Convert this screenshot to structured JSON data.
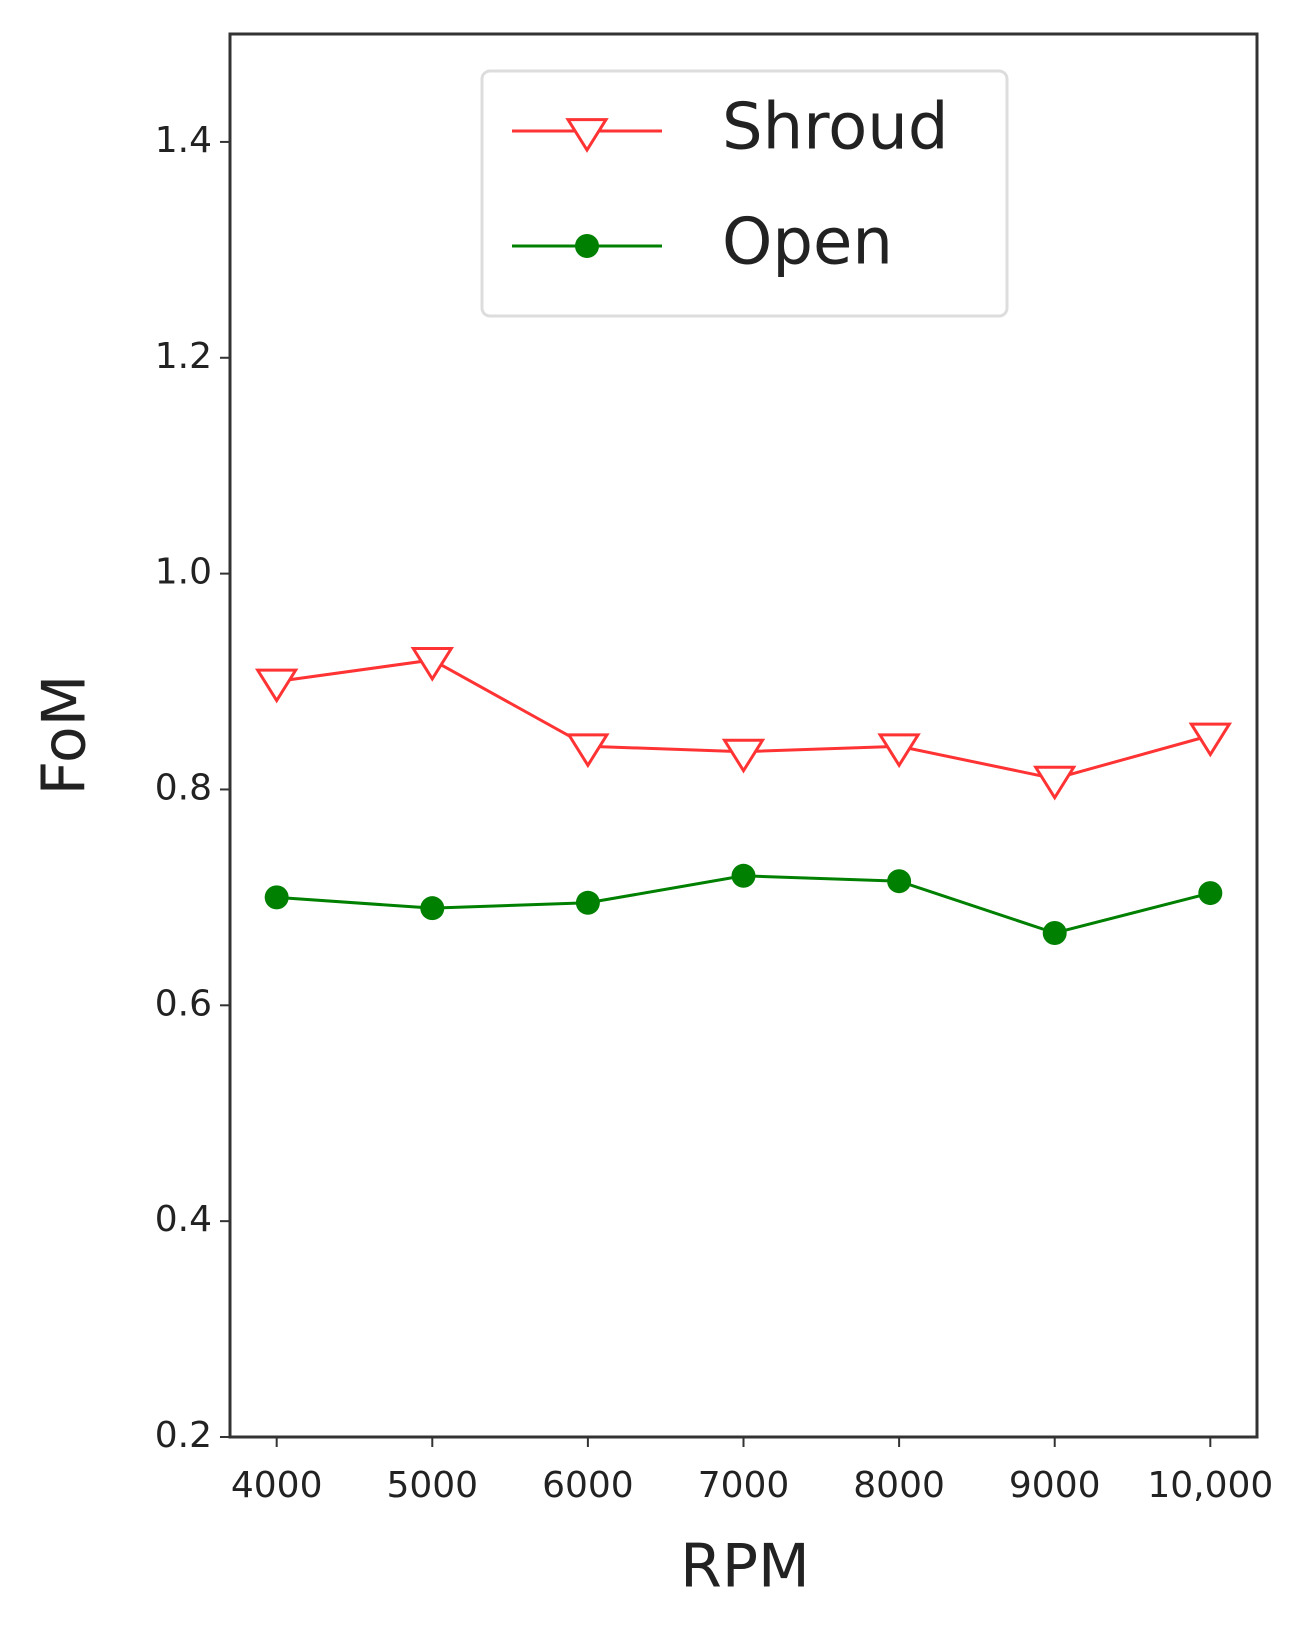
{
  "chart_data": {
    "type": "line",
    "x_label": "RPM",
    "y_label": "FoM",
    "x": [
      4000,
      5000,
      6000,
      7000,
      8000,
      9000,
      10000
    ],
    "series": [
      {
        "name": "Shroud",
        "color": "#ff3333",
        "marker": "triangle-down-open",
        "values": [
          0.9,
          0.92,
          0.84,
          0.835,
          0.84,
          0.81,
          0.85
        ]
      },
      {
        "name": "Open",
        "color": "#008000",
        "marker": "circle",
        "values": [
          0.7,
          0.69,
          0.695,
          0.72,
          0.715,
          0.667,
          0.704
        ]
      }
    ],
    "xlim": [
      3700,
      10300
    ],
    "xticks": [
      4000,
      5000,
      6000,
      7000,
      8000,
      9000,
      {
        "value": 10000,
        "label": "10,000"
      }
    ],
    "ylim": [
      0.2,
      1.5
    ],
    "yticks": [
      {
        "value": 0.2,
        "label": "0.2"
      },
      {
        "value": 0.4,
        "label": "0.4"
      },
      {
        "value": 0.6,
        "label": "0.6"
      },
      {
        "value": 0.8,
        "label": "0.8"
      },
      {
        "value": 1.0,
        "label": "1.0"
      },
      {
        "value": 1.2,
        "label": "1.2"
      },
      {
        "value": 1.4,
        "label": "1.4"
      }
    ],
    "legend": "upper center",
    "grid": false
  }
}
